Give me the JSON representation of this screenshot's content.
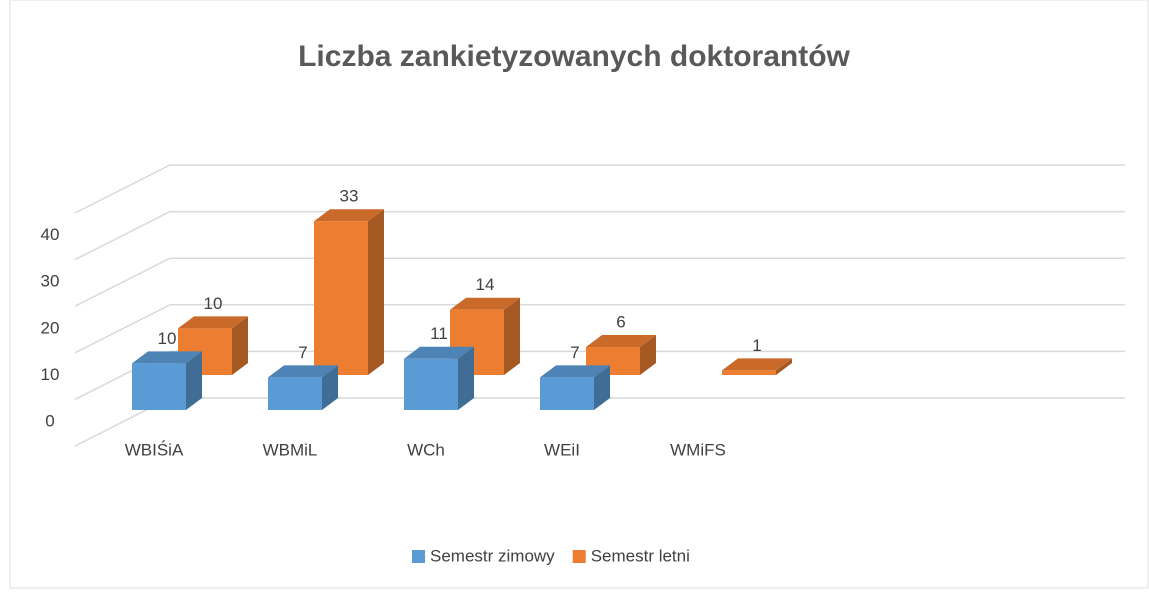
{
  "chart_data": {
    "type": "bar3d",
    "title": "Liczba zankietyzowanych doktorantów",
    "categories": [
      "WBIŚiA",
      "WBMiL",
      "WCh",
      "WEiI",
      "WMiFS"
    ],
    "series": [
      {
        "name": "Semestr zimowy",
        "color": "#5b9bd5",
        "values": [
          10,
          7,
          11,
          7,
          null
        ]
      },
      {
        "name": "Semestr letni",
        "color": "#ed7d31",
        "values": [
          10,
          33,
          14,
          6,
          1
        ]
      }
    ],
    "ylim": [
      0,
      50
    ],
    "yticks": [
      0,
      10,
      20,
      30,
      40
    ],
    "grid": true,
    "legend": "bottom"
  }
}
